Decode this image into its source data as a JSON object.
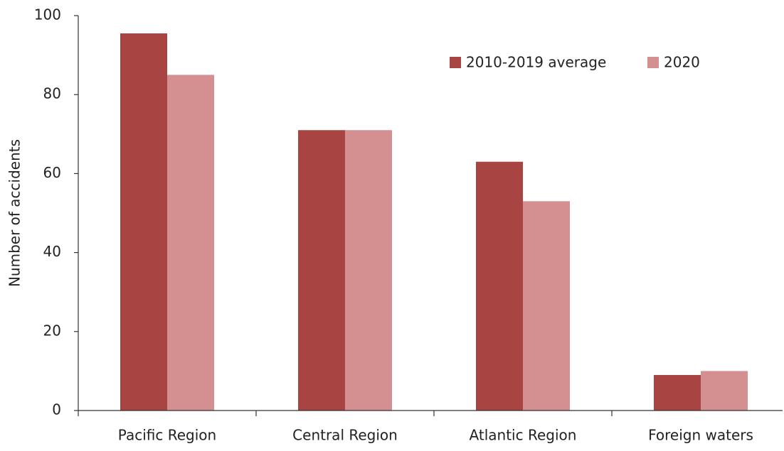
{
  "chart_data": {
    "type": "bar",
    "y_label": "Number of accidents",
    "categories": [
      "Pacific Region",
      "Central Region",
      "Atlantic Region",
      "Foreign waters"
    ],
    "series": [
      {
        "name": "2010-2019 average",
        "color": "#a84442",
        "values": [
          95.5,
          71,
          63,
          9
        ]
      },
      {
        "name": "2020",
        "color": "#d49090",
        "values": [
          85,
          71,
          53,
          10
        ]
      }
    ],
    "ylim": [
      0,
      100
    ],
    "yticks": [
      0,
      20,
      40,
      60,
      80,
      100
    ],
    "grid": false,
    "legend": "top-right"
  }
}
